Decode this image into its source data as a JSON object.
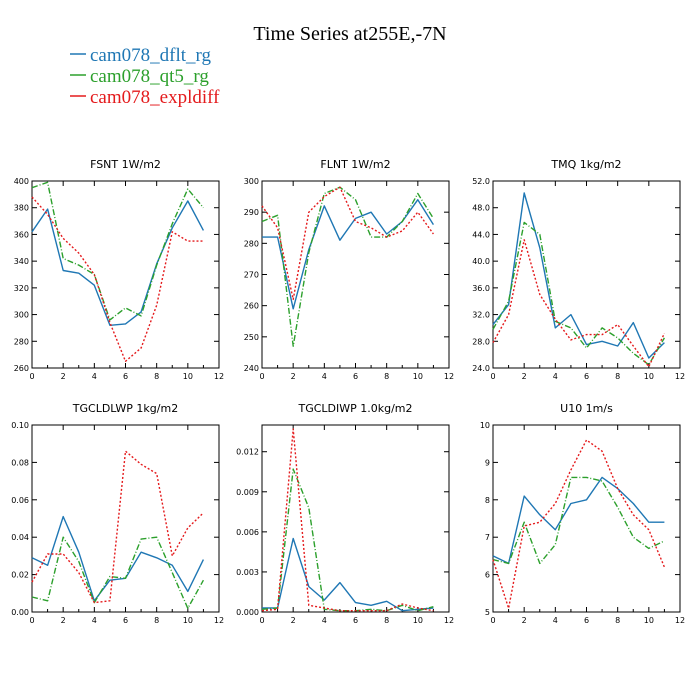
{
  "figure": {
    "title": "Time Series at255E,-7N",
    "legend": [
      {
        "label": "cam078_dflt_rg",
        "color": "#1f77b4",
        "dash": ""
      },
      {
        "label": "cam078_qt5_rg",
        "color": "#2ca02c",
        "dash": "6 2 1 2"
      },
      {
        "label": "cam078_expldiff",
        "color": "#e41a1c",
        "dash": "2 2"
      }
    ]
  },
  "chart_data": [
    {
      "type": "line",
      "title": "FSNT   1W/m2",
      "xlim": [
        0,
        12
      ],
      "ylim": [
        260,
        400
      ],
      "xticks": [
        0,
        2,
        4,
        6,
        8,
        10,
        12
      ],
      "yticks": [
        "260",
        "280",
        "300",
        "320",
        "340",
        "360",
        "380",
        "400"
      ],
      "x": [
        0,
        1,
        2,
        3,
        4,
        5,
        6,
        7,
        8,
        9,
        10,
        11
      ],
      "series": [
        {
          "name": "cam078_dflt_rg",
          "values": [
            362,
            379,
            333,
            331,
            322,
            292,
            293,
            302,
            338,
            365,
            385,
            363
          ]
        },
        {
          "name": "cam078_qt5_rg",
          "values": [
            395,
            399,
            342,
            337,
            330,
            296,
            305,
            299,
            337,
            368,
            394,
            380
          ]
        },
        {
          "name": "cam078_expldiff",
          "values": [
            388,
            375,
            357,
            346,
            330,
            294,
            265,
            275,
            307,
            362,
            355,
            355
          ]
        }
      ]
    },
    {
      "type": "line",
      "title": "FLNT   1W/m2",
      "xlim": [
        0,
        12
      ],
      "ylim": [
        240,
        300
      ],
      "xticks": [
        0,
        2,
        4,
        6,
        8,
        10,
        12
      ],
      "yticks": [
        "240",
        "250",
        "260",
        "270",
        "280",
        "290",
        "300"
      ],
      "x": [
        0,
        1,
        2,
        3,
        4,
        5,
        6,
        7,
        8,
        9,
        10,
        11
      ],
      "series": [
        {
          "name": "cam078_dflt_rg",
          "values": [
            282,
            282,
            259,
            278,
            292,
            281,
            288,
            290,
            283,
            287,
            294,
            286
          ]
        },
        {
          "name": "cam078_qt5_rg",
          "values": [
            287,
            289,
            247,
            277,
            296,
            298,
            294,
            282,
            282,
            287,
            296,
            288
          ]
        },
        {
          "name": "cam078_expldiff",
          "values": [
            292,
            285,
            262,
            290,
            295,
            298,
            287,
            285,
            282,
            284,
            290,
            283
          ]
        }
      ]
    },
    {
      "type": "line",
      "title": "TMQ   1kg/m2",
      "xlim": [
        0,
        12
      ],
      "ylim": [
        24,
        52
      ],
      "xticks": [
        0,
        2,
        4,
        6,
        8,
        10,
        12
      ],
      "yticks": [
        "24.0",
        "28.0",
        "32.0",
        "36.0",
        "40.0",
        "44.0",
        "48.0",
        "52.0"
      ],
      "x": [
        0,
        1,
        2,
        3,
        4,
        5,
        6,
        7,
        8,
        9,
        10,
        11
      ],
      "series": [
        {
          "name": "cam078_dflt_rg",
          "values": [
            30.5,
            33.5,
            50.2,
            42,
            30,
            32,
            27.5,
            28,
            27.3,
            30.8,
            25.5,
            27.8
          ]
        },
        {
          "name": "cam078_qt5_rg",
          "values": [
            29.8,
            34,
            45.8,
            44,
            31,
            30,
            27,
            30,
            28.5,
            26.2,
            24.5,
            28.5
          ]
        },
        {
          "name": "cam078_expldiff",
          "values": [
            27.8,
            32,
            43.2,
            35,
            31.3,
            28.2,
            29,
            29,
            30.5,
            27.3,
            24.2,
            29.2
          ]
        }
      ]
    },
    {
      "type": "line",
      "title": "TGCLDLWP   1kg/m2",
      "xlim": [
        0,
        12
      ],
      "ylim": [
        0,
        0.1
      ],
      "xticks": [
        0,
        2,
        4,
        6,
        8,
        10,
        12
      ],
      "yticks": [
        "0.00",
        "0.02",
        "0.04",
        "0.06",
        "0.08",
        "0.10"
      ],
      "x": [
        0,
        1,
        2,
        3,
        4,
        5,
        6,
        7,
        8,
        9,
        10,
        11
      ],
      "series": [
        {
          "name": "cam078_dflt_rg",
          "values": [
            0.029,
            0.025,
            0.051,
            0.032,
            0.006,
            0.017,
            0.018,
            0.032,
            0.029,
            0.025,
            0.011,
            0.028
          ]
        },
        {
          "name": "cam078_qt5_rg",
          "values": [
            0.008,
            0.006,
            0.04,
            0.027,
            0.005,
            0.019,
            0.018,
            0.039,
            0.04,
            0.021,
            0.002,
            0.017
          ]
        },
        {
          "name": "cam078_expldiff",
          "values": [
            0.016,
            0.031,
            0.031,
            0.021,
            0.005,
            0.006,
            0.086,
            0.079,
            0.074,
            0.03,
            0.045,
            0.053
          ]
        }
      ]
    },
    {
      "type": "line",
      "title": "TGCLDIWP   1.0kg/m2",
      "xlim": [
        0,
        12
      ],
      "ylim": [
        0,
        0.014
      ],
      "xticks": [
        0,
        2,
        4,
        6,
        8,
        10,
        12
      ],
      "yticks": [
        "0.000",
        "0.003",
        "0.006",
        "0.009",
        "0.012"
      ],
      "x": [
        0,
        1,
        2,
        3,
        4,
        5,
        6,
        7,
        8,
        9,
        10,
        11
      ],
      "series": [
        {
          "name": "cam078_dflt_rg",
          "values": [
            0.0003,
            0.0003,
            0.0055,
            0.0019,
            0.0009,
            0.0022,
            0.0007,
            0.0005,
            0.0008,
            0.0001,
            0.0002,
            0.0003
          ]
        },
        {
          "name": "cam078_qt5_rg",
          "values": [
            0.0002,
            0.0003,
            0.0107,
            0.0078,
            0.0002,
            0.0001,
            0.0001,
            0.0002,
            0.0001,
            0.0005,
            0.0001,
            0.0004
          ]
        },
        {
          "name": "cam078_expldiff",
          "values": [
            0.0001,
            0.0002,
            0.0137,
            0.0005,
            0.0003,
            0.0001,
            0.0001,
            0.0001,
            0.0001,
            0.0006,
            0.0003,
            0.0001
          ]
        }
      ]
    },
    {
      "type": "line",
      "title": "U10   1m/s",
      "xlim": [
        0,
        12
      ],
      "ylim": [
        5,
        10
      ],
      "xticks": [
        0,
        2,
        4,
        6,
        8,
        10,
        12
      ],
      "yticks": [
        "5",
        "6",
        "7",
        "8",
        "9",
        "10"
      ],
      "x": [
        0,
        1,
        2,
        3,
        4,
        5,
        6,
        7,
        8,
        9,
        10,
        11
      ],
      "series": [
        {
          "name": "cam078_dflt_rg",
          "values": [
            6.5,
            6.3,
            8.1,
            7.6,
            7.2,
            7.9,
            8,
            8.6,
            8.3,
            7.9,
            7.4,
            7.4
          ]
        },
        {
          "name": "cam078_qt5_rg",
          "values": [
            6.4,
            6.3,
            7.4,
            6.3,
            6.8,
            8.6,
            8.6,
            8.5,
            7.8,
            7,
            6.7,
            6.9
          ]
        },
        {
          "name": "cam078_expldiff",
          "values": [
            6.4,
            5.1,
            7.3,
            7.4,
            7.9,
            8.8,
            9.6,
            9.3,
            8.3,
            7.6,
            7.2,
            6.2
          ]
        }
      ]
    }
  ]
}
